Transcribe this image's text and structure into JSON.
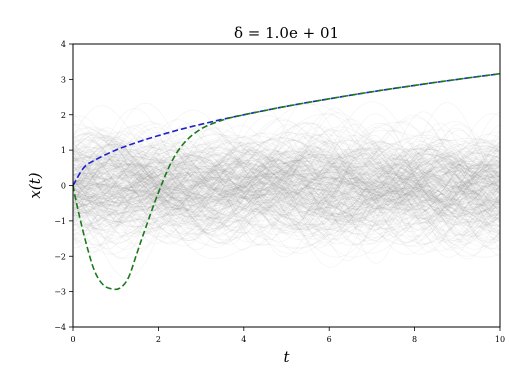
{
  "chart_data": {
    "type": "line",
    "title": "δ = 1.0e + 01",
    "xlabel": "t",
    "ylabel": "x(t)",
    "xlim": [
      0,
      10
    ],
    "ylim": [
      -4,
      4
    ],
    "xticks": [
      "0",
      "2",
      "4",
      "6",
      "8",
      "10"
    ],
    "yticks": [
      "−4",
      "−3",
      "−2",
      "−1",
      "0",
      "1",
      "2",
      "3",
      "4"
    ],
    "grid": false,
    "legend": "none",
    "background_sample_paths": {
      "color": "#808080",
      "opacity": 0.08,
      "count": 300
    },
    "series": [
      {
        "color": "#1f1fcc",
        "style": "dashed",
        "x": [
          0,
          0.25,
          0.5,
          1,
          1.5,
          2,
          2.5,
          3,
          3.5,
          4,
          5,
          6,
          7,
          8,
          9,
          10
        ],
        "y": [
          0,
          0.5,
          0.71,
          1.0,
          1.22,
          1.41,
          1.58,
          1.73,
          1.87,
          2.0,
          2.24,
          2.45,
          2.65,
          2.83,
          3.0,
          3.16
        ]
      },
      {
        "color": "#1a7a1a",
        "style": "dashed",
        "x": [
          0,
          0.1,
          0.3,
          0.5,
          0.7,
          0.9,
          1.1,
          1.3,
          1.5,
          1.7,
          2,
          2.3,
          2.6,
          3,
          3.5,
          4,
          4.5,
          5,
          6,
          7,
          8,
          9,
          10
        ],
        "y": [
          0,
          -0.6,
          -1.6,
          -2.4,
          -2.8,
          -2.92,
          -2.9,
          -2.6,
          -1.9,
          -1.2,
          -0.2,
          0.65,
          1.2,
          1.6,
          1.85,
          2.0,
          2.12,
          2.24,
          2.45,
          2.65,
          2.83,
          3.0,
          3.16
        ]
      }
    ]
  }
}
